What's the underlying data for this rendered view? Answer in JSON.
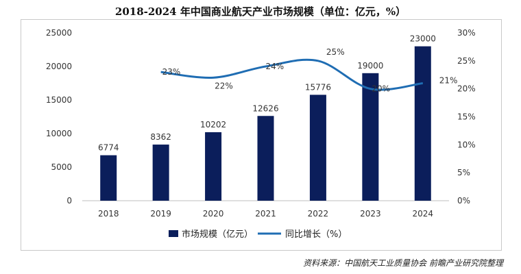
{
  "title": "2018-2024 年中国商业航天产业市场规模（单位：亿元，%）",
  "source": "资料来源：中国航天工业质量协会 前瞻产业研究院整理",
  "chart_data": {
    "type": "bar+line",
    "categories": [
      "2018",
      "2019",
      "2020",
      "2021",
      "2022",
      "2023",
      "2024"
    ],
    "bar_series": {
      "name": "市场规模（亿元）",
      "values": [
        6774,
        8362,
        10202,
        12626,
        15776,
        19000,
        23000
      ],
      "color": "#0b1e5b"
    },
    "line_series": {
      "name": "同比增长（%）",
      "values": [
        null,
        23,
        22,
        24,
        25,
        20,
        21
      ],
      "labels": [
        null,
        "23%",
        "22%",
        "24%",
        "25%",
        "20%",
        "21%"
      ],
      "color": "#1f6db3"
    },
    "y_left": {
      "min": 0,
      "max": 25000,
      "ticks": [
        "0",
        "5000",
        "10000",
        "15000",
        "20000",
        "25000"
      ]
    },
    "y_right": {
      "min": 0,
      "max": 30,
      "ticks": [
        "0%",
        "5%",
        "10%",
        "15%",
        "20%",
        "25%",
        "30%"
      ]
    },
    "legend_position": "bottom"
  }
}
